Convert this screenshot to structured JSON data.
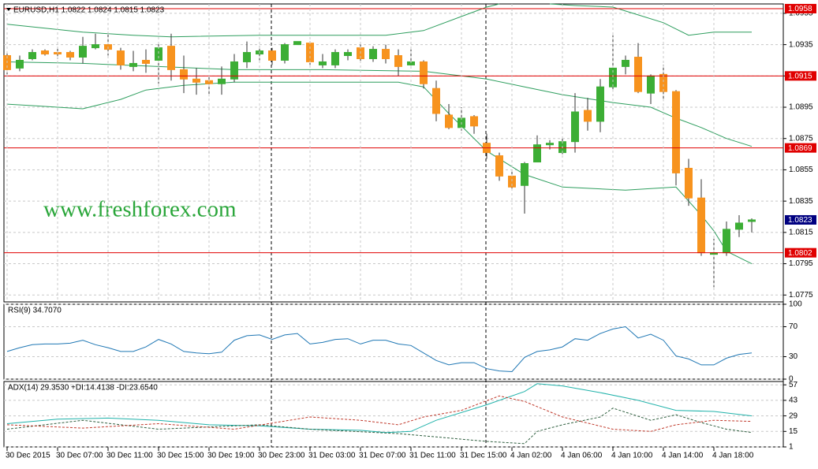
{
  "watermark": "www.freshforex.com",
  "chart_data": [
    {
      "type": "candlestick",
      "title": "EURUSD,H1  1.0822 1.0824 1.0815 1.0823",
      "categories": [
        "30 Dec 2015",
        null,
        null,
        null,
        "30 Dec 07:00",
        null,
        null,
        null,
        "30 Dec 11:00",
        null,
        null,
        null,
        "30 Dec 15:00",
        null,
        null,
        null,
        "30 Dec 19:00",
        null,
        null,
        null,
        "30 Dec 23:00",
        null,
        null,
        null,
        "31 Dec 03:00",
        null,
        null,
        null,
        "31 Dec 07:00",
        null,
        null,
        null,
        "31 Dec 11:00",
        null,
        null,
        null,
        "31 Dec 15:00",
        null,
        null,
        null,
        "4 Jan 02:00",
        null,
        null,
        null,
        "4 Jan 06:00",
        null,
        null,
        null,
        "4 Jan 10:00",
        null,
        null,
        null,
        "4 Jan 14:00",
        null,
        null,
        null,
        "4 Jan 18:00",
        null,
        null,
        null
      ],
      "open": [
        1.0928,
        1.092,
        1.0926,
        1.0931,
        1.093,
        1.093,
        1.0927,
        1.0933,
        1.0935,
        1.0931,
        1.0921,
        1.0925,
        1.0925,
        1.0934,
        1.0919,
        1.0913,
        1.0912,
        1.091,
        1.0913,
        1.0924,
        1.0929,
        1.0931,
        1.0925,
        1.0935,
        1.0936,
        1.0922,
        1.0922,
        1.0928,
        1.0933,
        1.0926,
        1.0932,
        1.0928,
        1.0922,
        1.0924,
        1.0907,
        1.089,
        1.0882,
        1.0889,
        1.0872,
        1.0864,
        1.0851,
        1.0845,
        1.086,
        1.0871,
        1.0866,
        1.0873,
        1.0893,
        1.0886,
        1.0908,
        1.0921,
        1.0927,
        1.0904,
        1.0916,
        1.0905,
        1.0856,
        1.0837,
        1.0801,
        1.0802,
        1.0817,
        1.0822
      ],
      "high": [
        1.093,
        1.0928,
        1.0932,
        1.0932,
        1.0933,
        1.0931,
        1.094,
        1.0942,
        1.0943,
        1.0933,
        1.0931,
        1.0932,
        1.0936,
        1.0942,
        1.0928,
        1.092,
        1.0915,
        1.0921,
        1.0929,
        1.0937,
        1.0934,
        1.0933,
        1.0936,
        1.0937,
        1.0937,
        1.0929,
        1.0932,
        1.0932,
        1.0935,
        1.0934,
        1.0935,
        1.0932,
        1.0932,
        1.0925,
        1.0912,
        1.0897,
        1.0895,
        1.089,
        1.0878,
        1.0866,
        1.0854,
        1.086,
        1.0877,
        1.0874,
        1.0876,
        1.0904,
        1.0901,
        1.0913,
        1.0941,
        1.0928,
        1.0936,
        1.0916,
        1.0922,
        1.0906,
        1.0862,
        1.0849,
        1.0811,
        1.0822,
        1.0826,
        1.0824
      ],
      "low": [
        1.0916,
        1.0918,
        1.0925,
        1.0928,
        1.0926,
        1.0925,
        1.0923,
        1.0932,
        1.0928,
        1.0919,
        1.0918,
        1.0917,
        1.091,
        1.0912,
        1.0904,
        1.0903,
        1.0902,
        1.0903,
        1.0911,
        1.092,
        1.0925,
        1.0922,
        1.0923,
        1.0935,
        1.0922,
        1.092,
        1.092,
        1.0925,
        1.0924,
        1.0924,
        1.0923,
        1.0915,
        1.092,
        1.0907,
        1.0886,
        1.0881,
        1.088,
        1.0878,
        1.0862,
        1.0848,
        1.0842,
        1.0827,
        1.086,
        1.0868,
        1.0865,
        1.0866,
        1.088,
        1.0879,
        1.0905,
        1.0916,
        1.0904,
        1.0897,
        1.0899,
        1.0845,
        1.0832,
        1.08,
        1.078,
        1.08,
        1.0812,
        1.0815
      ],
      "close": [
        1.0919,
        1.0925,
        1.093,
        1.0929,
        1.0929,
        1.0927,
        1.0934,
        1.0935,
        1.0932,
        1.0922,
        1.0923,
        1.0923,
        1.0933,
        1.0919,
        1.0913,
        1.0911,
        1.091,
        1.0913,
        1.0924,
        1.093,
        1.0931,
        1.0925,
        1.0935,
        1.0937,
        1.0924,
        1.0924,
        1.093,
        1.093,
        1.0926,
        1.0932,
        1.0926,
        1.0921,
        1.0924,
        1.091,
        1.0891,
        1.0882,
        1.0888,
        1.0883,
        1.0866,
        1.0851,
        1.0844,
        1.0859,
        1.0871,
        1.0872,
        1.0873,
        1.0892,
        1.0886,
        1.0908,
        1.092,
        1.0925,
        1.0905,
        1.0915,
        1.0905,
        1.0853,
        1.0837,
        1.0802,
        1.0802,
        1.0817,
        1.0821,
        1.0823
      ],
      "up_color": "#3cae35",
      "down_color": "#f7931e",
      "bands": [
        {
          "color": "#2e9e5e",
          "x": [
            0,
            6,
            10,
            13,
            20,
            30,
            33,
            36,
            38,
            39,
            40,
            43,
            45,
            48,
            50,
            52,
            54,
            56,
            59
          ],
          "values": [
            1.0948,
            1.0943,
            1.0941,
            1.094,
            1.0941,
            1.0941,
            1.0944,
            1.0953,
            1.0959,
            1.0961,
            null,
            1.0961,
            1.096,
            1.0959,
            1.0954,
            1.0949,
            1.0941,
            1.0943,
            1.0943
          ]
        },
        {
          "color": "#2e9e5e",
          "x": [
            0,
            6,
            12,
            18,
            25,
            33,
            36,
            38,
            41,
            44,
            48,
            51,
            53,
            55,
            57,
            59
          ],
          "values": [
            1.0924,
            1.0923,
            1.0921,
            1.0919,
            1.0919,
            1.0918,
            1.0915,
            1.0913,
            1.0908,
            1.0903,
            1.0898,
            1.0895,
            1.0888,
            1.0882,
            1.0875,
            1.087
          ]
        },
        {
          "color": "#2e9e5e",
          "x": [
            0,
            2,
            6,
            9,
            11,
            14,
            18,
            25,
            31,
            33,
            35,
            38,
            41,
            44,
            49,
            53,
            54,
            55,
            56,
            57,
            59
          ],
          "values": [
            1.0897,
            1.0896,
            1.0894,
            1.09,
            1.0906,
            1.0909,
            1.0911,
            1.0911,
            1.0911,
            1.0908,
            1.0891,
            1.0867,
            1.0852,
            1.0844,
            1.0842,
            1.0844,
            1.0835,
            1.0826,
            1.0816,
            1.0803,
            1.0795
          ]
        }
      ],
      "levels": [
        1.0958,
        1.0915,
        1.0869,
        1.0802
      ],
      "level_color": "#e00000",
      "last_price": 1.0823,
      "last_price_color": "#000080",
      "ylim": [
        1.07706,
        1.0961
      ],
      "yticks": [
        1.0955,
        1.0935,
        1.0915,
        1.0895,
        1.0875,
        1.0855,
        1.0835,
        1.0815,
        1.0795,
        1.0775
      ],
      "grid": true
    },
    {
      "type": "line",
      "title": "RSI(9) 34.7070",
      "color": "#1f77b4",
      "values": [
        37,
        42,
        46,
        47,
        47,
        48,
        52,
        46,
        42,
        37,
        37,
        43,
        53,
        47,
        37,
        35,
        34,
        36,
        52,
        58,
        59,
        53,
        59,
        61,
        47,
        49,
        53,
        54,
        47,
        52,
        52,
        47,
        45,
        35,
        25,
        19,
        22,
        22,
        14,
        11,
        10,
        29,
        37,
        39,
        43,
        54,
        52,
        61,
        67,
        70,
        55,
        60,
        52,
        31,
        27,
        19,
        19,
        28,
        33,
        35
      ],
      "ylim": [
        0,
        100
      ],
      "yticks": [
        0,
        30,
        70,
        100
      ],
      "grid": true
    },
    {
      "type": "line",
      "title": "ADX(14) 29.3530 +DI:14.4138 -DI:23.6540",
      "series": [
        {
          "color": "#20b2aa",
          "dash": false,
          "x": [
            0,
            4,
            8,
            12,
            16,
            20,
            24,
            28,
            30,
            32,
            34,
            38,
            41,
            42,
            44,
            47,
            50,
            53,
            56,
            59
          ],
          "values": [
            22,
            26,
            27,
            25,
            21,
            20,
            17,
            16,
            14,
            15,
            25,
            39,
            51,
            58,
            56,
            50,
            43,
            34,
            33,
            29
          ]
        },
        {
          "color": "#2f5f3f",
          "dash": true,
          "x": [
            0,
            6,
            12,
            20,
            24,
            31,
            34,
            38,
            41,
            42,
            44,
            47,
            48,
            51,
            53,
            55,
            57,
            59
          ],
          "values": [
            17,
            25,
            17,
            21,
            17,
            13,
            10,
            6,
            4,
            15,
            21,
            28,
            36,
            25,
            30,
            23,
            17,
            14
          ]
        },
        {
          "color": "#c0392b",
          "dash": true,
          "x": [
            0,
            6,
            12,
            18,
            24,
            28,
            31,
            33,
            36,
            39,
            41,
            44,
            48,
            51,
            53,
            56,
            59
          ],
          "values": [
            21,
            18,
            22,
            17,
            28,
            25,
            21,
            28,
            34,
            47,
            42,
            28,
            17,
            15,
            21,
            25,
            24
          ]
        }
      ],
      "ylim": [
        1,
        60
      ],
      "yticks": [
        1,
        15,
        29,
        43,
        57
      ],
      "grid": true
    }
  ]
}
